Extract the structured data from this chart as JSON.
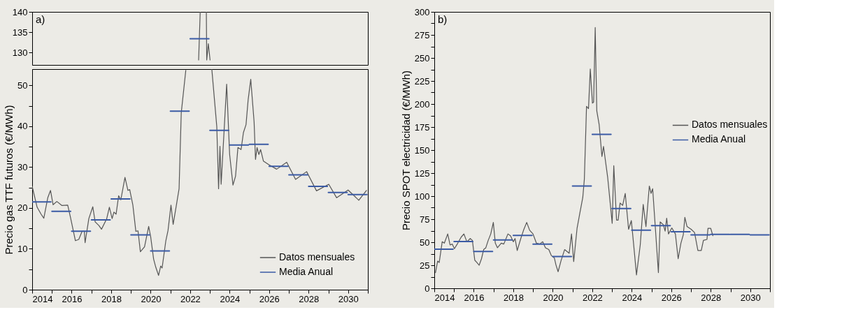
{
  "chart_data": [
    {
      "type": "line",
      "xlim": [
        2014,
        2031
      ],
      "ylim": [
        127,
        140
      ],
      "yticks": [
        130,
        135,
        140
      ],
      "tick_labels": "y",
      "annotations": [
        "a)"
      ],
      "line_style": "solid",
      "marker": "none",
      "grid": false,
      "legend": false,
      "series": [
        {
          "color": "#555555",
          "x": [
            2022.43,
            2022.51,
            2022.6,
            2022.82,
            2022.84,
            2022.92,
            2023.01
          ],
          "values": [
            128.2,
            140,
            null,
            140,
            128.2,
            132.2,
            128.2
          ]
        },
        {
          "color": "#3b5ba5",
          "x": [
            2022,
            2022.95
          ],
          "values": [
            133.4,
            133.4
          ]
        }
      ]
    },
    {
      "type": "line",
      "xlim": [
        2014,
        2031
      ],
      "ylim": [
        0,
        54
      ],
      "yticks": [
        0,
        {
          "value": 5,
          "label": null
        },
        10,
        {
          "value": 15,
          "label": null
        },
        20,
        {
          "value": 25,
          "label": null
        },
        30,
        {
          "value": 35,
          "label": null
        },
        40,
        {
          "value": 45,
          "label": null
        },
        50
      ],
      "xticks": [
        2014,
        {
          "value": 2015,
          "label": null
        },
        2016,
        {
          "value": 2017,
          "label": null
        },
        2018,
        {
          "value": 2019,
          "label": null
        },
        2020,
        {
          "value": 2021,
          "label": null
        },
        2022,
        {
          "value": 2023,
          "label": null
        },
        2024,
        {
          "value": 2025,
          "label": null
        },
        2026,
        {
          "value": 2027,
          "label": null
        },
        2028,
        {
          "value": 2029,
          "label": null
        },
        2030,
        {
          "value": 2031,
          "label": null
        }
      ],
      "ylabel": "Precio gas TTF futuros (€/MWh)",
      "legend": "bottom right",
      "line_style": "solid",
      "marker": "none",
      "grid": false,
      "series": [
        {
          "name": "Datos mensuales",
          "color": "#555555",
          "x": [
            2014.0,
            2014.25,
            2014.45,
            2014.59,
            2014.79,
            2014.93,
            2015.06,
            2015.25,
            2015.51,
            2015.8,
            2015.94,
            2016.19,
            2016.36,
            2016.53,
            2016.64,
            2016.68,
            2016.87,
            2017.07,
            2017.19,
            2017.38,
            2017.51,
            2017.77,
            2017.91,
            2018.05,
            2018.14,
            2018.25,
            2018.38,
            2018.49,
            2018.7,
            2018.85,
            2018.94,
            2019.1,
            2019.25,
            2019.36,
            2019.48,
            2019.69,
            2019.9,
            2020.0,
            2020.15,
            2020.26,
            2020.4,
            2020.51,
            2020.58,
            2020.77,
            2020.88,
            2021.03,
            2021.14,
            2021.28,
            2021.44,
            2021.55,
            2021.78,
            2022.5,
            2023.1,
            2023.35,
            2023.44,
            2023.51,
            2023.57,
            2023.85,
            2024.0,
            2024.17,
            2024.3,
            2024.42,
            2024.58,
            2024.7,
            2024.83,
            2024.94,
            2025.07,
            2025.24,
            2025.31,
            2025.39,
            2025.48,
            2025.57,
            2025.71,
            2025.99,
            2026.38,
            2026.89,
            2027.34,
            2027.9,
            2028.4,
            2029.02,
            2029.42,
            2030.0,
            2030.54,
            2030.93
          ],
          "values": [
            25.3,
            20.2,
            18.5,
            17.5,
            22.5,
            24.3,
            20.8,
            21.6,
            20.6,
            20.7,
            17.7,
            12,
            12.3,
            14.3,
            14.3,
            11.5,
            17.4,
            20.3,
            16.6,
            15.7,
            14.8,
            17.3,
            20.2,
            17.4,
            19,
            18.5,
            23,
            22,
            27.5,
            24.3,
            24.5,
            20.7,
            14.3,
            14.4,
            9.3,
            10.5,
            15.5,
            13,
            7.5,
            5.5,
            3.5,
            5.8,
            5.3,
            12,
            14.5,
            20.7,
            16,
            20,
            24.7,
            43.3,
            53.7,
            null,
            53.9,
            39.9,
            24.7,
            35.1,
            25.8,
            50.3,
            33.1,
            25.6,
            27.8,
            34.8,
            34.3,
            38.5,
            40.4,
            46.6,
            51.5,
            41,
            31.9,
            34.8,
            33.1,
            34.3,
            31.5,
            30.6,
            29.5,
            31.2,
            27,
            28.9,
            24.2,
            25.8,
            22.5,
            24.4,
            21.9,
            24.3
          ]
        },
        {
          "name": "Media Anual",
          "color": "#3b5ba5",
          "x": [
            2014,
            2014.95,
            2014.97,
            2015,
            2015.95,
            2015.97,
            2016,
            2016.95,
            2016.97,
            2017,
            2017.95,
            2017.97,
            2018,
            2018.95,
            2018.97,
            2019,
            2019.95,
            2019.97,
            2020,
            2020.95,
            2020.97,
            2021,
            2021.95,
            2021.97,
            2023,
            2023.95,
            2023.97,
            2024,
            2024.95,
            2024.97,
            2025,
            2025.95,
            2025.97,
            2026,
            2026.95,
            2026.97,
            2027,
            2027.95,
            2027.97,
            2028,
            2028.95,
            2028.97,
            2029,
            2029.95,
            2029.97,
            2030,
            2030.95
          ],
          "values": [
            21.5,
            21.5,
            null,
            19.2,
            19.2,
            null,
            14.3,
            14.3,
            null,
            17.1,
            17.1,
            null,
            22.2,
            22.2,
            null,
            13.4,
            13.4,
            null,
            9.5,
            9.5,
            null,
            43.7,
            43.7,
            null,
            39,
            39,
            null,
            35.4,
            35.4,
            null,
            35.6,
            35.6,
            null,
            30.2,
            30.2,
            null,
            28.1,
            28.1,
            null,
            25.3,
            25.3,
            null,
            23.8,
            23.8,
            null,
            23.3,
            23.3
          ]
        }
      ]
    },
    {
      "type": "line",
      "xlim": [
        2014,
        2031
      ],
      "ylim": [
        0,
        300
      ],
      "yticks": [
        0,
        {
          "value": 12.5,
          "label": null
        },
        25,
        {
          "value": 37.5,
          "label": null
        },
        50,
        {
          "value": 62.5,
          "label": null
        },
        75,
        {
          "value": 87.5,
          "label": null
        },
        100,
        {
          "value": 112.5,
          "label": null
        },
        125,
        {
          "value": 137.5,
          "label": null
        },
        150,
        {
          "value": 162.5,
          "label": null
        },
        175,
        {
          "value": 187.5,
          "label": null
        },
        200,
        {
          "value": 212.5,
          "label": null
        },
        225,
        {
          "value": 237.5,
          "label": null
        },
        250,
        {
          "value": 262.5,
          "label": null
        },
        275,
        {
          "value": 287.5,
          "label": null
        },
        300
      ],
      "xticks": [
        2014,
        {
          "value": 2015,
          "label": null
        },
        2016,
        {
          "value": 2017,
          "label": null
        },
        2018,
        {
          "value": 2019,
          "label": null
        },
        2020,
        {
          "value": 2021,
          "label": null
        },
        2022,
        {
          "value": 2023,
          "label": null
        },
        2024,
        {
          "value": 2025,
          "label": null
        },
        2026,
        {
          "value": 2027,
          "label": null
        },
        2028,
        {
          "value": 2029,
          "label": null
        },
        2030,
        {
          "value": 2031,
          "label": null
        }
      ],
      "ylabel": "Precio SPOT electricidad (€/MWh)",
      "annotations": [
        "b)"
      ],
      "legend": "right",
      "line_style": "solid",
      "marker": "none",
      "grid": false,
      "series": [
        {
          "name": "Datos mensuales",
          "color": "#555555",
          "x": [
            2014.06,
            2014.17,
            2014.25,
            2014.4,
            2014.51,
            2014.68,
            2014.8,
            2014.91,
            2015.02,
            2015.19,
            2015.36,
            2015.5,
            2015.65,
            2015.82,
            2015.93,
            2016.05,
            2016.16,
            2016.27,
            2016.39,
            2016.5,
            2016.61,
            2016.73,
            2016.86,
            2016.99,
            2017.09,
            2017.2,
            2017.39,
            2017.52,
            2017.73,
            2017.86,
            2018.0,
            2018.09,
            2018.2,
            2018.38,
            2018.52,
            2018.68,
            2018.83,
            2019.0,
            2019.17,
            2019.34,
            2019.49,
            2019.63,
            2019.8,
            2019.93,
            2020.08,
            2020.16,
            2020.27,
            2020.42,
            2020.6,
            2020.83,
            2020.95,
            2021.06,
            2021.23,
            2021.35,
            2021.52,
            2021.6,
            2021.71,
            2021.81,
            2021.9,
            2022.01,
            2022.07,
            2022.15,
            2022.23,
            2022.35,
            2022.49,
            2022.57,
            2022.78,
            2023.01,
            2023.09,
            2023.23,
            2023.31,
            2023.41,
            2023.54,
            2023.67,
            2023.84,
            2023.98,
            2024.09,
            2024.24,
            2024.43,
            2024.58,
            2024.72,
            2024.89,
            2024.98,
            2025.06,
            2025.35,
            2025.44,
            2025.6,
            2025.69,
            2025.77,
            2025.86,
            2026.03,
            2026.21,
            2026.35,
            2026.49,
            2026.61,
            2026.69,
            2026.8,
            2027.01,
            2027.18,
            2027.35,
            2027.52,
            2027.63,
            2027.81,
            2027.86,
            2028.0,
            2028.11
          ],
          "values": [
            17,
            29.5,
            28,
            50.5,
            49,
            59,
            47,
            48,
            43,
            49,
            55.5,
            59,
            50.5,
            54,
            52,
            30.5,
            28,
            25,
            32,
            42,
            44,
            52,
            59,
            71.5,
            49,
            44,
            49,
            48,
            59,
            57,
            50.5,
            54,
            41,
            54,
            63,
            71.5,
            63,
            59,
            49,
            48,
            50.5,
            44,
            42,
            35.5,
            33,
            25.5,
            18,
            30,
            42,
            38,
            59,
            29,
            65,
            79,
            98.5,
            118.5,
            197.5,
            195,
            238,
            201,
            202,
            283,
            192.5,
            177.5,
            143,
            154,
            120.5,
            70.5,
            133,
            74,
            74,
            92.5,
            90,
            103,
            64,
            73.5,
            49,
            14.5,
            47,
            91,
            67,
            111,
            103,
            108,
            17,
            72,
            69,
            62,
            76,
            59,
            65.5,
            59,
            32,
            49,
            58,
            77,
            67,
            64,
            60.5,
            41,
            41,
            52,
            53,
            65,
            65,
            57
          ]
        },
        {
          "name": "Media Anual",
          "color": "#3b5ba5",
          "x": [
            2014,
            2014.95,
            2014.97,
            2015,
            2015.95,
            2015.97,
            2016,
            2016.95,
            2016.97,
            2017,
            2017.95,
            2017.97,
            2018,
            2018.95,
            2018.97,
            2019,
            2019.95,
            2019.97,
            2020,
            2020.95,
            2020.97,
            2021,
            2021.95,
            2021.97,
            2022,
            2022.95,
            2022.97,
            2023,
            2023.95,
            2023.97,
            2024,
            2024.95,
            2024.97,
            2025,
            2025.95,
            2025.97,
            2026,
            2026.95,
            2026.97,
            2027,
            2027.95,
            2027.97,
            2028,
            2028.95,
            2028.97,
            2029,
            2029.95,
            2029.97,
            2030,
            2030.95
          ],
          "values": [
            42.4,
            42.4,
            null,
            50.7,
            50.7,
            null,
            39.9,
            39.9,
            null,
            52.4,
            52.4,
            null,
            57.4,
            57.4,
            null,
            47.9,
            47.9,
            null,
            34.4,
            34.4,
            null,
            111,
            111,
            null,
            167,
            167,
            null,
            86.5,
            86.5,
            null,
            63,
            63,
            null,
            68,
            68,
            null,
            61.4,
            61.4,
            null,
            58,
            58,
            null,
            58.5,
            58.5,
            null,
            58.5,
            58.5,
            null,
            58,
            58
          ]
        }
      ]
    }
  ]
}
